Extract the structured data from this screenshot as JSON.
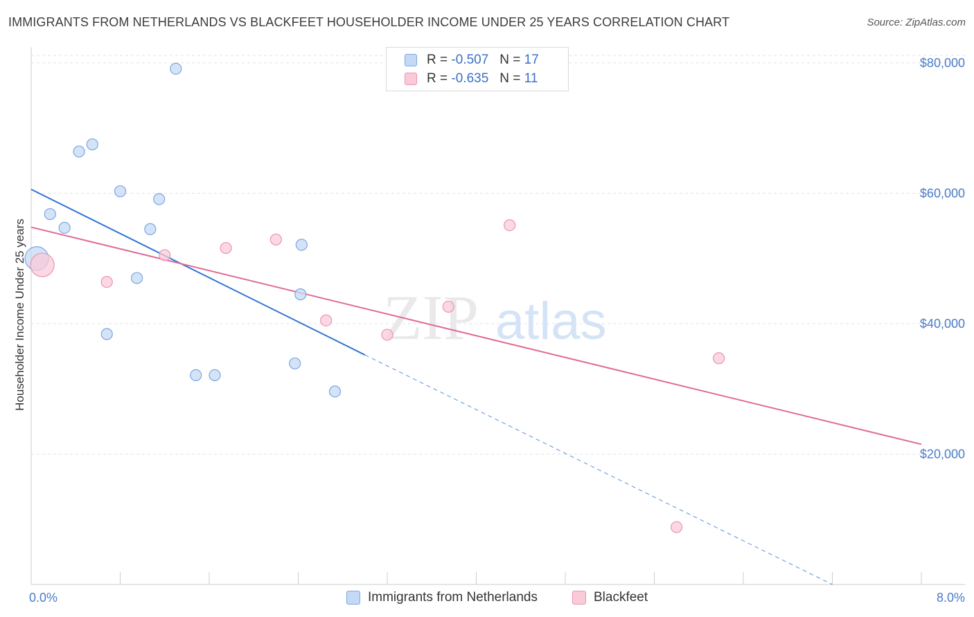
{
  "title": "IMMIGRANTS FROM NETHERLANDS VS BLACKFEET HOUSEHOLDER INCOME UNDER 25 YEARS CORRELATION CHART",
  "source": "Source: ZipAtlas.com",
  "watermark": {
    "zip": "ZIP",
    "atlas": "atlas"
  },
  "legend": {
    "rows": [
      {
        "r_label": "R =",
        "r_value": "-0.507",
        "n_label": "N =",
        "n_value": "17"
      },
      {
        "r_label": "R =",
        "r_value": "-0.635",
        "n_label": "N =",
        "n_value": "11"
      }
    ]
  },
  "bottom_legend": {
    "series1": "Immigrants from Netherlands",
    "series2": "Blackfeet"
  },
  "chart_data": {
    "type": "scatter",
    "title": "IMMIGRANTS FROM NETHERLANDS VS BLACKFEET HOUSEHOLDER INCOME UNDER 25 YEARS CORRELATION CHART",
    "xlabel": "",
    "ylabel": "Householder Income Under 25 years",
    "xlim": [
      0,
      8
    ],
    "ylim": [
      0,
      82000
    ],
    "x_tick_labels": [
      "0.0%",
      "8.0%"
    ],
    "y_ticks": [
      20000,
      40000,
      60000,
      80000
    ],
    "y_tick_labels": [
      "$20,000",
      "$40,000",
      "$60,000",
      "$80,000"
    ],
    "grid": true,
    "legend_position": "top-center",
    "colors": {
      "series1_fill": "#c5d9f4",
      "series1_stroke": "#7aa6e0",
      "series1_line": "#2f74d0",
      "series2_fill": "#f9cbd9",
      "series2_stroke": "#ee92b0",
      "series2_line": "#e06a96"
    },
    "series": [
      {
        "name": "Immigrants from Netherlands",
        "points": [
          {
            "x": 0.05,
            "y": 50000,
            "big": true
          },
          {
            "x": 0.17,
            "y": 56800
          },
          {
            "x": 0.3,
            "y": 54700
          },
          {
            "x": 0.43,
            "y": 66400
          },
          {
            "x": 0.55,
            "y": 67500
          },
          {
            "x": 0.68,
            "y": 38400
          },
          {
            "x": 0.8,
            "y": 60300
          },
          {
            "x": 0.95,
            "y": 47000
          },
          {
            "x": 1.07,
            "y": 54500
          },
          {
            "x": 1.15,
            "y": 59100
          },
          {
            "x": 1.3,
            "y": 79100
          },
          {
            "x": 1.48,
            "y": 32100
          },
          {
            "x": 1.65,
            "y": 32100
          },
          {
            "x": 2.37,
            "y": 33900
          },
          {
            "x": 2.42,
            "y": 44500
          },
          {
            "x": 2.43,
            "y": 52100
          },
          {
            "x": 2.73,
            "y": 29600
          }
        ],
        "trend": {
          "x0": 0.0,
          "y0": 60600,
          "x1": 3.0,
          "y1": 35200,
          "dash_x1": 7.2,
          "dash_y1": 0
        }
      },
      {
        "name": "Blackfeet",
        "points": [
          {
            "x": 0.1,
            "y": 49000,
            "big": true
          },
          {
            "x": 0.68,
            "y": 46400
          },
          {
            "x": 1.2,
            "y": 50500
          },
          {
            "x": 1.75,
            "y": 51600
          },
          {
            "x": 2.2,
            "y": 52900
          },
          {
            "x": 2.65,
            "y": 40500
          },
          {
            "x": 3.2,
            "y": 38300
          },
          {
            "x": 3.75,
            "y": 42600
          },
          {
            "x": 4.3,
            "y": 55100
          },
          {
            "x": 5.8,
            "y": 8800
          },
          {
            "x": 6.18,
            "y": 34700
          }
        ],
        "trend": {
          "x0": 0.0,
          "y0": 54800,
          "x1": 8.0,
          "y1": 21500
        }
      }
    ]
  }
}
